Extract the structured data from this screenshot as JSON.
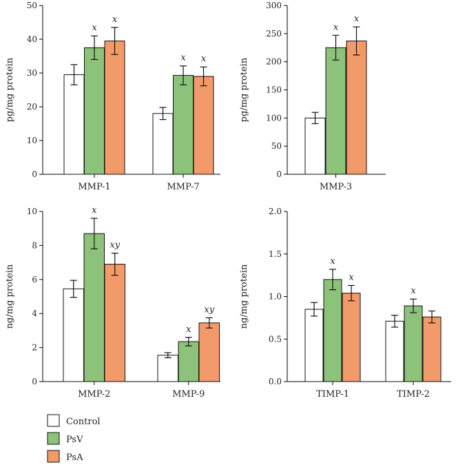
{
  "chart_data": [
    {
      "type": "bar",
      "categories": [
        "MMP-1",
        "MMP-7"
      ],
      "ylabel": "pg/mg protein",
      "ylim": [
        0,
        50
      ],
      "yticks": [
        0,
        10,
        20,
        30,
        40,
        50
      ],
      "series": [
        {
          "name": "Control",
          "values": [
            29.5,
            18.0
          ],
          "errors": [
            3.0,
            1.8
          ],
          "annotations": [
            "",
            ""
          ]
        },
        {
          "name": "PsV",
          "values": [
            37.5,
            29.3
          ],
          "errors": [
            3.5,
            2.8
          ],
          "annotations": [
            "x",
            "x"
          ]
        },
        {
          "name": "PsA",
          "values": [
            39.5,
            29.0
          ],
          "errors": [
            4.0,
            2.8
          ],
          "annotations": [
            "x",
            "x"
          ]
        }
      ]
    },
    {
      "type": "bar",
      "categories": [
        "MMP-3"
      ],
      "ylabel": "pg/mg protein",
      "ylim": [
        0,
        300
      ],
      "yticks": [
        0,
        50,
        100,
        150,
        200,
        250,
        300
      ],
      "series": [
        {
          "name": "Control",
          "values": [
            100
          ],
          "errors": [
            10
          ],
          "annotations": [
            ""
          ]
        },
        {
          "name": "PsV",
          "values": [
            225
          ],
          "errors": [
            22
          ],
          "annotations": [
            "x"
          ]
        },
        {
          "name": "PsA",
          "values": [
            237
          ],
          "errors": [
            25
          ],
          "annotations": [
            "x"
          ]
        }
      ]
    },
    {
      "type": "bar",
      "categories": [
        "MMP-2",
        "MMP-9"
      ],
      "ylabel": "ng/mg protein",
      "ylim": [
        0,
        10
      ],
      "yticks": [
        0,
        2,
        4,
        6,
        8,
        10
      ],
      "series": [
        {
          "name": "Control",
          "values": [
            5.45,
            1.55
          ],
          "errors": [
            0.5,
            0.15
          ],
          "annotations": [
            "",
            ""
          ]
        },
        {
          "name": "PsV",
          "values": [
            8.7,
            2.35
          ],
          "errors": [
            0.9,
            0.25
          ],
          "annotations": [
            "x",
            "x"
          ]
        },
        {
          "name": "PsA",
          "values": [
            6.9,
            3.45
          ],
          "errors": [
            0.65,
            0.3
          ],
          "annotations": [
            "xy",
            "xy"
          ]
        }
      ]
    },
    {
      "type": "bar",
      "categories": [
        "TIMP-1",
        "TIMP-2"
      ],
      "ylabel": "ng/mg protein",
      "ylim": [
        0,
        2.0
      ],
      "yticks": [
        "0.0",
        "0.5",
        "1.0",
        "1.5",
        "2.0"
      ],
      "series": [
        {
          "name": "Control",
          "values": [
            0.85,
            0.71
          ],
          "errors": [
            0.08,
            0.07
          ],
          "annotations": [
            "",
            ""
          ]
        },
        {
          "name": "PsV",
          "values": [
            1.2,
            0.89
          ],
          "errors": [
            0.12,
            0.08
          ],
          "annotations": [
            "x",
            "x"
          ]
        },
        {
          "name": "PsA",
          "values": [
            1.04,
            0.76
          ],
          "errors": [
            0.09,
            0.07
          ],
          "annotations": [
            "x",
            ""
          ]
        }
      ]
    }
  ],
  "legend": {
    "placement": "bottom-left",
    "items": [
      {
        "label": "Control",
        "color": "#ffffff"
      },
      {
        "label": "PsV",
        "color": "#8dc27a"
      },
      {
        "label": "PsA",
        "color": "#f29a6a"
      }
    ]
  },
  "colors": {
    "Control": "#ffffff",
    "PsV": "#8dc27a",
    "PsA": "#f29a6a"
  }
}
